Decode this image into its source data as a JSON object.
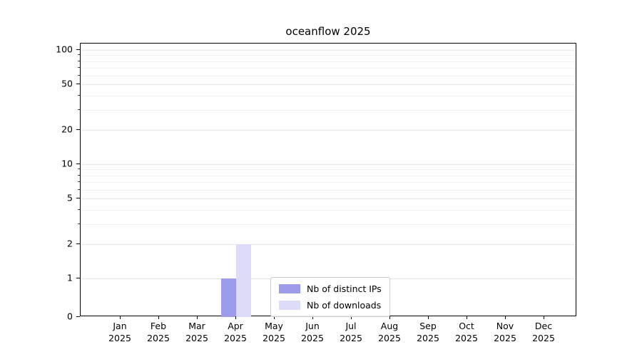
{
  "chart_data": {
    "type": "bar",
    "title": "oceanflow 2025",
    "categories": [
      "Jan",
      "Feb",
      "Mar",
      "Apr",
      "May",
      "Jun",
      "Jul",
      "Aug",
      "Sep",
      "Oct",
      "Nov",
      "Dec"
    ],
    "year_label": "2025",
    "series": [
      {
        "name": "Nb of distinct IPs",
        "color": "#9c9cea",
        "values": [
          0,
          0,
          0,
          1,
          0,
          0,
          0,
          0,
          0,
          0,
          0,
          0
        ]
      },
      {
        "name": "Nb of downloads",
        "color": "#dcdcf8",
        "values": [
          0,
          0,
          0,
          2,
          0,
          0,
          0,
          0,
          0,
          0,
          0,
          0
        ]
      }
    ],
    "yticks": [
      0,
      1,
      2,
      5,
      10,
      20,
      50,
      100
    ],
    "minor_yticks": [
      3,
      4,
      6,
      7,
      8,
      9,
      30,
      40,
      60,
      70,
      80,
      90
    ],
    "scale": "symlog",
    "ylim": [
      0,
      114
    ],
    "xlabel": "",
    "ylabel": "",
    "grid": "horizontal",
    "legend_position": "bottom-center"
  }
}
